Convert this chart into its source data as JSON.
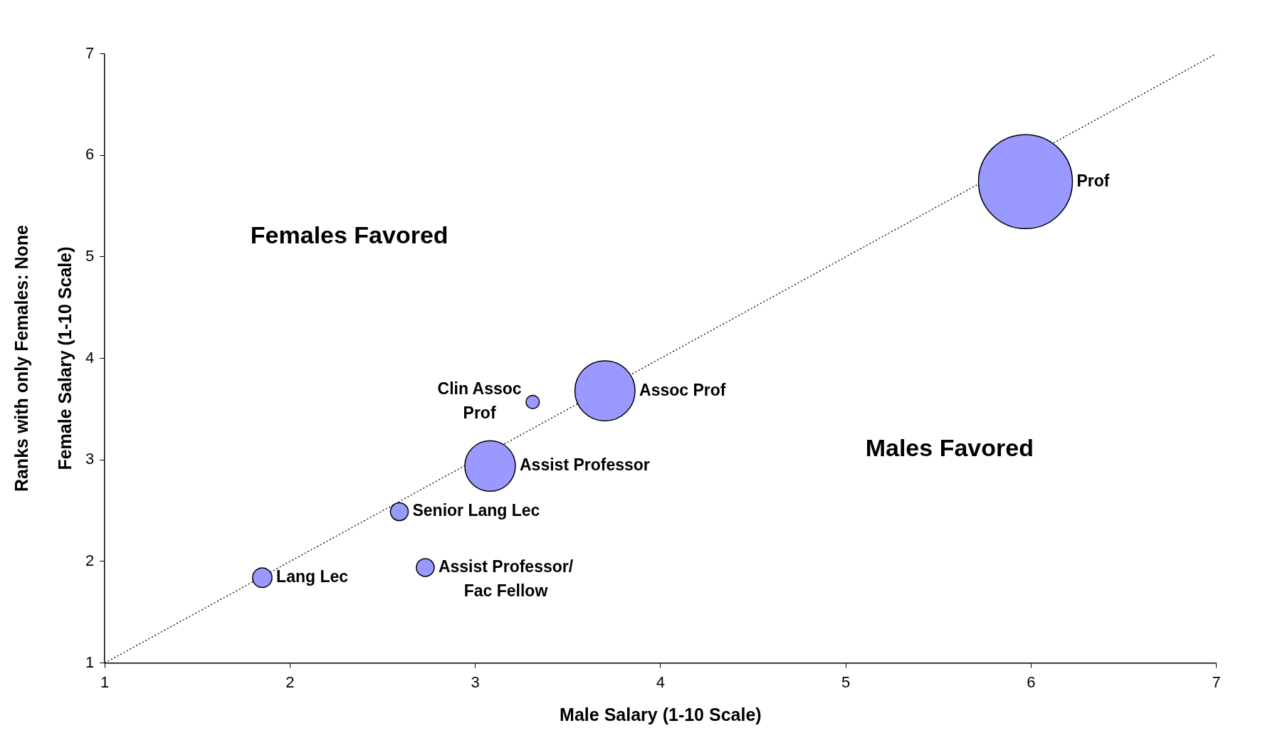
{
  "chart_data": {
    "type": "bubble",
    "xlabel": "Male Salary (1-10 Scale)",
    "ylabel": "Female Salary (1-10 Scale)",
    "xlim": [
      1,
      7
    ],
    "ylim": [
      1,
      7
    ],
    "xticks": [
      1,
      2,
      3,
      4,
      5,
      6,
      7
    ],
    "yticks": [
      1,
      2,
      3,
      4,
      5,
      6,
      7
    ],
    "grid": false,
    "series": [
      {
        "color": "#9999ff",
        "x": [
          5.97,
          3.7,
          3.31,
          3.08,
          2.59,
          2.73,
          1.85
        ],
        "values": [
          5.74,
          3.68,
          3.57,
          2.94,
          2.49,
          1.94,
          1.84
        ],
        "sizes": [
          1,
          0.41,
          0.02,
          0.29,
          0.036,
          0.036,
          0.043
        ],
        "value_labels": [
          "Prof",
          "Assoc Prof",
          "Clin Assoc\nProf",
          "Assist Professor",
          "Senior Lang Lec",
          "Assist Professor/\nFac Fellow",
          "Lang Lec"
        ]
      },
      {
        "type": "line",
        "color": "#000000",
        "x": [
          1,
          7
        ],
        "values": [
          1,
          7
        ],
        "line_style": "dotted",
        "marker": "none"
      }
    ],
    "annotations": [
      "Females Favored",
      "Males Favored",
      "Ranks with only Females: None"
    ]
  }
}
